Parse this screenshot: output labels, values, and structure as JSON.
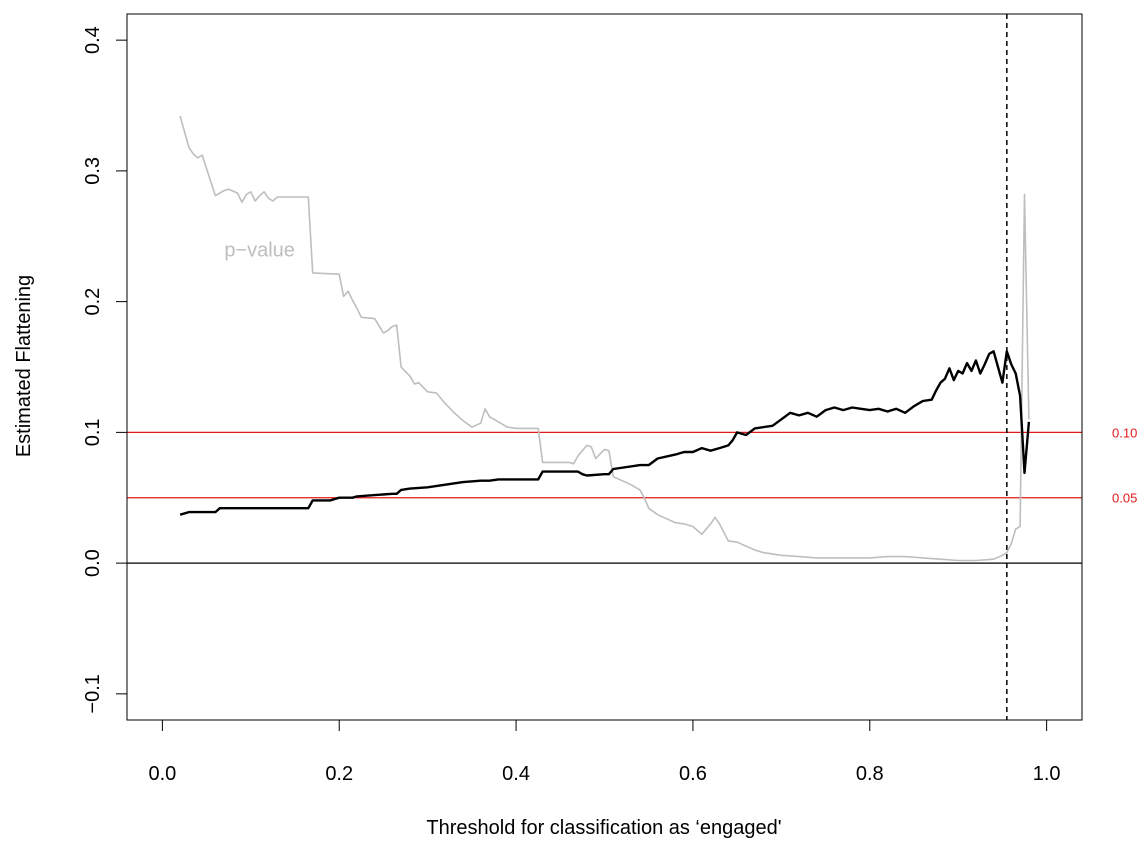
{
  "chart_data": {
    "type": "line",
    "xlabel": "Threshold for classification as ‘engaged'",
    "ylabel": "Estimated Flattening",
    "xlim": [
      -0.04,
      1.04
    ],
    "ylim": [
      -0.12,
      0.42
    ],
    "xticks": [
      0.0,
      0.2,
      0.4,
      0.6,
      0.8,
      1.0
    ],
    "xtick_labels": [
      "0.0",
      "0.2",
      "0.4",
      "0.6",
      "0.8",
      "1.0"
    ],
    "yticks": [
      -0.1,
      0.0,
      0.1,
      0.2,
      0.3,
      0.4
    ],
    "ytick_labels": [
      "−0.1",
      "0.0",
      "0.1",
      "0.2",
      "0.3",
      "0.4"
    ],
    "grid": false,
    "annotations": [
      {
        "text": "p−value",
        "x": 0.11,
        "y": 0.24,
        "color": "#bebebe"
      }
    ],
    "reference_lines": [
      {
        "orientation": "horizontal",
        "value": 0.1,
        "color": "#e31a1c",
        "label": "0.10"
      },
      {
        "orientation": "horizontal",
        "value": 0.05,
        "color": "#e31a1c",
        "label": "0.05"
      },
      {
        "orientation": "horizontal",
        "value": 0.0,
        "color": "#000000",
        "label": ""
      },
      {
        "orientation": "vertical",
        "value": 0.955,
        "color": "#000000",
        "style": "dashed",
        "label": ""
      }
    ],
    "series": [
      {
        "color": "#000000",
        "x": [
          0.02,
          0.03,
          0.06,
          0.065,
          0.1,
          0.165,
          0.17,
          0.19,
          0.2,
          0.215,
          0.22,
          0.24,
          0.26,
          0.265,
          0.27,
          0.28,
          0.3,
          0.32,
          0.34,
          0.36,
          0.37,
          0.38,
          0.4,
          0.42,
          0.425,
          0.43,
          0.47,
          0.475,
          0.48,
          0.5,
          0.505,
          0.51,
          0.54,
          0.55,
          0.56,
          0.58,
          0.59,
          0.6,
          0.61,
          0.62,
          0.63,
          0.64,
          0.645,
          0.65,
          0.66,
          0.67,
          0.69,
          0.7,
          0.71,
          0.72,
          0.73,
          0.74,
          0.75,
          0.76,
          0.77,
          0.78,
          0.79,
          0.8,
          0.81,
          0.82,
          0.83,
          0.84,
          0.85,
          0.86,
          0.87,
          0.875,
          0.88,
          0.885,
          0.89,
          0.895,
          0.9,
          0.905,
          0.91,
          0.915,
          0.92,
          0.925,
          0.93,
          0.935,
          0.94,
          0.945,
          0.95,
          0.955,
          0.96,
          0.965,
          0.97,
          0.975,
          0.98
        ],
        "y": [
          0.037,
          0.039,
          0.039,
          0.042,
          0.042,
          0.042,
          0.048,
          0.048,
          0.05,
          0.05,
          0.051,
          0.052,
          0.053,
          0.053,
          0.056,
          0.057,
          0.058,
          0.06,
          0.062,
          0.063,
          0.063,
          0.064,
          0.064,
          0.064,
          0.064,
          0.07,
          0.07,
          0.068,
          0.067,
          0.068,
          0.068,
          0.072,
          0.075,
          0.075,
          0.08,
          0.083,
          0.085,
          0.085,
          0.088,
          0.086,
          0.088,
          0.09,
          0.094,
          0.1,
          0.098,
          0.103,
          0.105,
          0.11,
          0.115,
          0.113,
          0.115,
          0.112,
          0.117,
          0.119,
          0.117,
          0.119,
          0.118,
          0.117,
          0.118,
          0.116,
          0.118,
          0.115,
          0.12,
          0.124,
          0.125,
          0.132,
          0.138,
          0.141,
          0.149,
          0.14,
          0.147,
          0.145,
          0.153,
          0.147,
          0.155,
          0.145,
          0.152,
          0.16,
          0.162,
          0.15,
          0.138,
          0.162,
          0.152,
          0.145,
          0.128,
          0.069,
          0.108
        ]
      },
      {
        "color": "#bebebe",
        "x": [
          0.02,
          0.025,
          0.03,
          0.035,
          0.04,
          0.045,
          0.06,
          0.065,
          0.07,
          0.075,
          0.085,
          0.09,
          0.095,
          0.1,
          0.105,
          0.11,
          0.115,
          0.12,
          0.125,
          0.13,
          0.165,
          0.17,
          0.2,
          0.205,
          0.21,
          0.215,
          0.22,
          0.225,
          0.24,
          0.25,
          0.255,
          0.26,
          0.265,
          0.27,
          0.28,
          0.285,
          0.29,
          0.3,
          0.31,
          0.32,
          0.33,
          0.34,
          0.35,
          0.36,
          0.365,
          0.37,
          0.38,
          0.39,
          0.4,
          0.41,
          0.425,
          0.43,
          0.46,
          0.465,
          0.47,
          0.48,
          0.485,
          0.49,
          0.5,
          0.505,
          0.51,
          0.52,
          0.53,
          0.54,
          0.545,
          0.55,
          0.56,
          0.57,
          0.58,
          0.59,
          0.6,
          0.61,
          0.62,
          0.625,
          0.63,
          0.64,
          0.65,
          0.66,
          0.67,
          0.68,
          0.7,
          0.72,
          0.74,
          0.76,
          0.78,
          0.8,
          0.82,
          0.84,
          0.86,
          0.88,
          0.9,
          0.92,
          0.94,
          0.95,
          0.955,
          0.96,
          0.965,
          0.97,
          0.975,
          0.98
        ],
        "y": [
          0.342,
          0.33,
          0.318,
          0.313,
          0.31,
          0.312,
          0.281,
          0.283,
          0.285,
          0.286,
          0.283,
          0.276,
          0.282,
          0.284,
          0.277,
          0.281,
          0.284,
          0.279,
          0.277,
          0.28,
          0.28,
          0.222,
          0.221,
          0.204,
          0.208,
          0.201,
          0.195,
          0.188,
          0.187,
          0.176,
          0.178,
          0.181,
          0.182,
          0.15,
          0.143,
          0.137,
          0.138,
          0.131,
          0.13,
          0.122,
          0.115,
          0.109,
          0.104,
          0.107,
          0.118,
          0.112,
          0.108,
          0.104,
          0.103,
          0.103,
          0.103,
          0.077,
          0.077,
          0.076,
          0.082,
          0.09,
          0.089,
          0.08,
          0.087,
          0.086,
          0.066,
          0.063,
          0.06,
          0.056,
          0.05,
          0.042,
          0.037,
          0.034,
          0.031,
          0.03,
          0.028,
          0.022,
          0.03,
          0.035,
          0.03,
          0.017,
          0.016,
          0.013,
          0.01,
          0.008,
          0.006,
          0.005,
          0.004,
          0.004,
          0.004,
          0.004,
          0.005,
          0.005,
          0.004,
          0.003,
          0.002,
          0.002,
          0.003,
          0.006,
          0.008,
          0.015,
          0.026,
          0.028,
          0.282,
          0.11
        ]
      }
    ]
  }
}
